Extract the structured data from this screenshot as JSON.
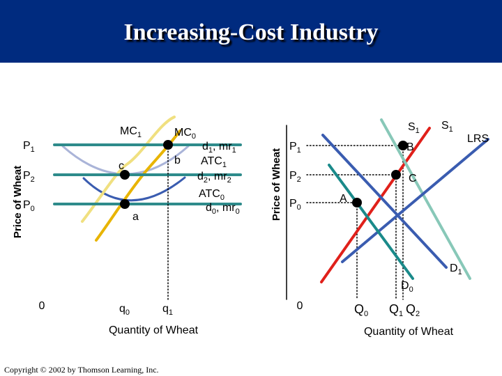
{
  "title": "Increasing-Cost Industry",
  "copyright": "Copyright © 2002 by Thomson Learning, Inc.",
  "colors": {
    "header": "#002b7f",
    "mc1": "#f0e080",
    "mc0": "#e8b400",
    "atc1": "#aab4d8",
    "atc0": "#3a5cb0",
    "price_line": "#2e8b8b",
    "supply1": "#e0201a",
    "supply2": "#88c8b8",
    "lrs": "#3a5cb0",
    "demand": "#1a8a8a"
  },
  "chart_data": [
    {
      "type": "line",
      "panel": "firm",
      "ylabel": "Price of Wheat",
      "xlabel": "Quantity of Wheat",
      "origin": "0",
      "price_levels": [
        {
          "name": "P0",
          "base": "P",
          "sub": "0",
          "value": 0
        },
        {
          "name": "P2",
          "base": "P",
          "sub": "2",
          "value": 1
        },
        {
          "name": "P1",
          "base": "P",
          "sub": "1",
          "value": 2
        }
      ],
      "quantity_ticks": [
        {
          "base": "q",
          "sub": "0",
          "value": 0
        },
        {
          "base": "q",
          "sub": "1",
          "value": 1
        }
      ],
      "curves": {
        "mc1": {
          "base": "MC",
          "sub": "1"
        },
        "mc0": {
          "base": "MC",
          "sub": "0"
        },
        "atc1": {
          "base": "ATC",
          "sub": "1"
        },
        "atc0": {
          "base": "ATC",
          "sub": "0"
        }
      },
      "demand_labels": [
        {
          "parts": [
            [
              "d",
              "1"
            ],
            [
              "mr",
              "1"
            ]
          ]
        },
        {
          "parts": [
            [
              "d",
              "2"
            ],
            [
              "mr",
              "2"
            ]
          ]
        },
        {
          "parts": [
            [
              "d",
              "0"
            ],
            [
              "mr",
              "0"
            ]
          ]
        }
      ],
      "points": [
        {
          "label": "a",
          "price": "P0",
          "quantity": "q0"
        },
        {
          "label": "b",
          "price": "P1",
          "quantity": "q1"
        },
        {
          "label": "c",
          "price": "P2",
          "quantity": "q0"
        }
      ]
    },
    {
      "type": "line",
      "panel": "industry",
      "ylabel": "Price of Wheat",
      "xlabel": "Quantity of Wheat",
      "origin": "0",
      "price_levels": [
        {
          "name": "P0",
          "base": "P",
          "sub": "0",
          "value": 0
        },
        {
          "name": "P2",
          "base": "P",
          "sub": "2",
          "value": 1
        },
        {
          "name": "P1",
          "base": "P",
          "sub": "1",
          "value": 2
        }
      ],
      "quantity_ticks": [
        {
          "base": "Q",
          "sub": "0",
          "value": 0
        },
        {
          "base": "Q",
          "sub": "1",
          "value": 1
        },
        {
          "base": "Q",
          "sub": "2",
          "value": 2
        }
      ],
      "curves": {
        "s1_red": {
          "base": "S",
          "sub": "1"
        },
        "s1_green": {
          "base": "S",
          "sub": "1"
        },
        "lrs": {
          "base": "LRS"
        },
        "d0": {
          "base": "D",
          "sub": "0"
        },
        "d1": {
          "base": "D",
          "sub": "1"
        }
      },
      "points": [
        {
          "label": "A",
          "price": "P0",
          "quantity": "Q0"
        },
        {
          "label": "B",
          "price": "P1",
          "quantity": "Q1"
        },
        {
          "label": "C",
          "price": "P2",
          "quantity": "Q2"
        }
      ]
    }
  ]
}
